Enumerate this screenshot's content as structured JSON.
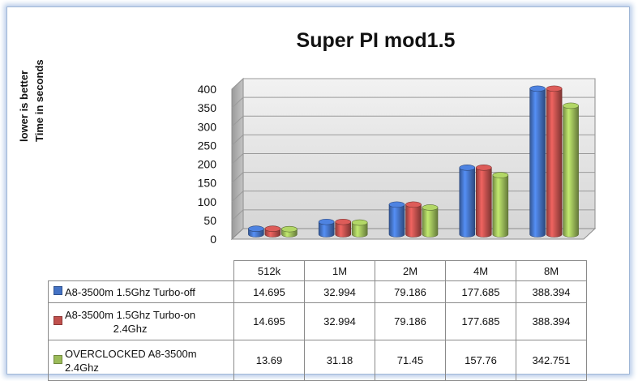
{
  "chart_data": {
    "type": "bar",
    "title": "Super PI mod1.5",
    "ylabel_lines": [
      "lower is better",
      "Time in seconds"
    ],
    "categories": [
      "512k",
      "1M",
      "2M",
      "4M",
      "8M"
    ],
    "ylim": [
      0,
      400
    ],
    "yticks": [
      0,
      50,
      100,
      150,
      200,
      250,
      300,
      350,
      400
    ],
    "grid": true,
    "legend": "data-table",
    "series": [
      {
        "name_line1": "A8-3500m 1.5Ghz Turbo-off",
        "name_line2": "",
        "color": "#4472c4",
        "values": [
          14.695,
          32.994,
          79.186,
          177.685,
          388.394
        ],
        "labels": [
          "14.695",
          "32.994",
          "79.186",
          "177.685",
          "388.394"
        ]
      },
      {
        "name_line1": "A8-3500m 1.5Ghz Turbo-on",
        "name_line2": "2.4Ghz",
        "color": "#c0504d",
        "values": [
          14.695,
          32.994,
          79.186,
          177.685,
          388.394
        ],
        "labels": [
          "14.695",
          "32.994",
          "79.186",
          "177.685",
          "388.394"
        ]
      },
      {
        "name_line1": "OVERCLOCKED A8-3500m",
        "name_line2": "2.4Ghz",
        "color": "#9bbb59",
        "values": [
          13.69,
          31.18,
          71.45,
          157.76,
          342.751
        ],
        "labels": [
          "13.69",
          "31.18",
          "71.45",
          "157.76",
          "342.751"
        ]
      }
    ]
  }
}
